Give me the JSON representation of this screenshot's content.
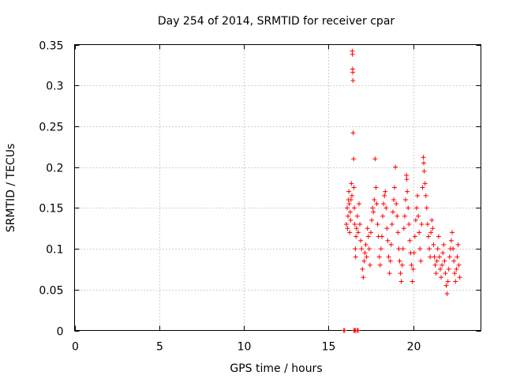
{
  "chart_data": {
    "type": "scatter",
    "title": "Day 254 of 2014, SRMTID for receiver cpar",
    "xlabel": "GPS time / hours",
    "ylabel": "SRMTID / TECUs",
    "xlim": [
      0,
      24
    ],
    "ylim": [
      0,
      0.35
    ],
    "xticks": [
      0,
      5,
      10,
      15,
      20
    ],
    "xtick_labels": [
      "0",
      "5",
      "10",
      "15",
      "20"
    ],
    "yticks": [
      0,
      0.05,
      0.1,
      0.15,
      0.2,
      0.25,
      0.3,
      0.35
    ],
    "ytick_labels": [
      "0",
      "0.05",
      "0.1",
      "0.15",
      "0.2",
      "0.25",
      "0.3",
      "0.35"
    ],
    "grid": true,
    "marker": "+",
    "color": "#ff0000",
    "series": [
      {
        "name": "SRMTID",
        "points": [
          [
            15.9,
            0.0
          ],
          [
            15.95,
            0.0
          ],
          [
            16.5,
            0.0
          ],
          [
            16.55,
            0.0
          ],
          [
            16.6,
            0.0
          ],
          [
            16.7,
            0.0
          ],
          [
            16.75,
            0.0
          ],
          [
            16.05,
            0.13
          ],
          [
            16.1,
            0.15
          ],
          [
            16.12,
            0.125
          ],
          [
            16.15,
            0.14
          ],
          [
            16.18,
            0.16
          ],
          [
            16.2,
            0.17
          ],
          [
            16.22,
            0.155
          ],
          [
            16.25,
            0.12
          ],
          [
            16.28,
            0.145
          ],
          [
            16.3,
            0.135
          ],
          [
            16.32,
            0.16
          ],
          [
            16.35,
            0.18
          ],
          [
            16.38,
            0.165
          ],
          [
            16.4,
            0.342
          ],
          [
            16.41,
            0.338
          ],
          [
            16.42,
            0.32
          ],
          [
            16.43,
            0.316
          ],
          [
            16.44,
            0.306
          ],
          [
            16.45,
            0.242
          ],
          [
            16.48,
            0.21
          ],
          [
            16.5,
            0.175
          ],
          [
            16.52,
            0.15
          ],
          [
            16.55,
            0.13
          ],
          [
            16.58,
            0.1
          ],
          [
            16.6,
            0.09
          ],
          [
            16.62,
            0.115
          ],
          [
            16.65,
            0.125
          ],
          [
            16.7,
            0.14
          ],
          [
            16.75,
            0.12
          ],
          [
            16.8,
            0.155
          ],
          [
            16.85,
            0.13
          ],
          [
            16.9,
            0.11
          ],
          [
            16.95,
            0.1
          ],
          [
            17.0,
            0.075
          ],
          [
            17.05,
            0.065
          ],
          [
            17.1,
            0.085
          ],
          [
            17.15,
            0.095
          ],
          [
            17.2,
            0.105
          ],
          [
            17.25,
            0.09
          ],
          [
            17.3,
            0.125
          ],
          [
            17.35,
            0.115
          ],
          [
            17.4,
            0.1
          ],
          [
            17.45,
            0.08
          ],
          [
            17.5,
            0.12
          ],
          [
            17.55,
            0.135
          ],
          [
            17.6,
            0.15
          ],
          [
            17.65,
            0.145
          ],
          [
            17.7,
            0.16
          ],
          [
            17.75,
            0.21
          ],
          [
            17.8,
            0.175
          ],
          [
            17.85,
            0.155
          ],
          [
            17.9,
            0.13
          ],
          [
            17.95,
            0.115
          ],
          [
            18.0,
            0.09
          ],
          [
            18.05,
            0.08
          ],
          [
            18.1,
            0.1
          ],
          [
            18.15,
            0.115
          ],
          [
            18.2,
            0.14
          ],
          [
            18.25,
            0.155
          ],
          [
            18.3,
            0.165
          ],
          [
            18.35,
            0.17
          ],
          [
            18.4,
            0.15
          ],
          [
            18.45,
            0.125
          ],
          [
            18.5,
            0.11
          ],
          [
            18.55,
            0.09
          ],
          [
            18.6,
            0.07
          ],
          [
            18.65,
            0.085
          ],
          [
            18.7,
            0.105
          ],
          [
            18.75,
            0.13
          ],
          [
            18.8,
            0.145
          ],
          [
            18.85,
            0.16
          ],
          [
            18.9,
            0.175
          ],
          [
            18.95,
            0.2
          ],
          [
            19.0,
            0.155
          ],
          [
            19.05,
            0.14
          ],
          [
            19.1,
            0.12
          ],
          [
            19.15,
            0.1
          ],
          [
            19.2,
            0.085
          ],
          [
            19.25,
            0.07
          ],
          [
            19.3,
            0.06
          ],
          [
            19.35,
            0.08
          ],
          [
            19.4,
            0.1
          ],
          [
            19.45,
            0.125
          ],
          [
            19.5,
            0.14
          ],
          [
            19.55,
            0.16
          ],
          [
            19.6,
            0.19
          ],
          [
            19.62,
            0.185
          ],
          [
            19.65,
            0.17
          ],
          [
            19.7,
            0.15
          ],
          [
            19.75,
            0.13
          ],
          [
            19.8,
            0.11
          ],
          [
            19.85,
            0.095
          ],
          [
            19.9,
            0.08
          ],
          [
            19.95,
            0.06
          ],
          [
            20.0,
            0.075
          ],
          [
            20.05,
            0.095
          ],
          [
            20.1,
            0.115
          ],
          [
            20.15,
            0.135
          ],
          [
            20.2,
            0.15
          ],
          [
            20.25,
            0.165
          ],
          [
            20.3,
            0.14
          ],
          [
            20.35,
            0.12
          ],
          [
            20.4,
            0.1
          ],
          [
            20.45,
            0.085
          ],
          [
            20.5,
            0.13
          ],
          [
            20.55,
            0.175
          ],
          [
            20.6,
            0.212
          ],
          [
            20.62,
            0.205
          ],
          [
            20.65,
            0.195
          ],
          [
            20.7,
            0.18
          ],
          [
            20.75,
            0.165
          ],
          [
            20.8,
            0.15
          ],
          [
            20.85,
            0.13
          ],
          [
            20.9,
            0.115
          ],
          [
            20.95,
            0.1
          ],
          [
            21.0,
            0.09
          ],
          [
            21.05,
            0.12
          ],
          [
            21.1,
            0.135
          ],
          [
            21.15,
            0.125
          ],
          [
            21.2,
            0.105
          ],
          [
            21.25,
            0.09
          ],
          [
            21.3,
            0.08
          ],
          [
            21.35,
            0.07
          ],
          [
            21.4,
            0.085
          ],
          [
            21.45,
            0.1
          ],
          [
            21.5,
            0.115
          ],
          [
            21.55,
            0.09
          ],
          [
            21.6,
            0.075
          ],
          [
            21.65,
            0.065
          ],
          [
            21.7,
            0.08
          ],
          [
            21.75,
            0.095
          ],
          [
            21.8,
            0.105
          ],
          [
            21.85,
            0.085
          ],
          [
            21.9,
            0.07
          ],
          [
            21.95,
            0.055
          ],
          [
            22.0,
            0.045
          ],
          [
            22.05,
            0.06
          ],
          [
            22.1,
            0.075
          ],
          [
            22.15,
            0.09
          ],
          [
            22.2,
            0.1
          ],
          [
            22.25,
            0.11
          ],
          [
            22.3,
            0.12
          ],
          [
            22.35,
            0.1
          ],
          [
            22.4,
            0.085
          ],
          [
            22.45,
            0.07
          ],
          [
            22.5,
            0.06
          ],
          [
            22.55,
            0.075
          ],
          [
            22.6,
            0.09
          ],
          [
            22.65,
            0.105
          ],
          [
            22.7,
            0.08
          ],
          [
            22.75,
            0.065
          ]
        ]
      }
    ]
  }
}
